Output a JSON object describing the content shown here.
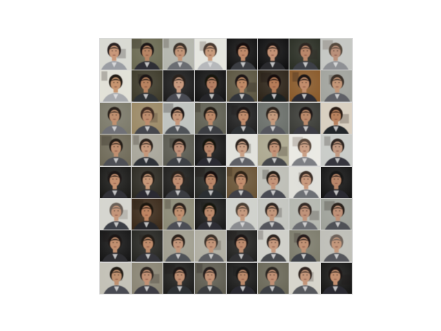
{
  "figure": {
    "rows": 8,
    "columns": 8,
    "content": "generated-face-samples",
    "tiles": [
      {
        "bg": "#d9dad3",
        "skin": "#c9987a",
        "hair": "#2a2320",
        "shirt": "#9a9da3"
      },
      {
        "bg": "#6b6a52",
        "skin": "#b88565",
        "hair": "#1c1714",
        "shirt": "#2d2f36"
      },
      {
        "bg": "#b4b6ad",
        "skin": "#c29578",
        "hair": "#3a322b",
        "shirt": "#6b6d72"
      },
      {
        "bg": "#e6e7e0",
        "skin": "#c89b7d",
        "hair": "#4a3b30",
        "shirt": "#b6b8bb"
      },
      {
        "bg": "#121212",
        "skin": "#c08a6a",
        "hair": "#15110f",
        "shirt": "#3a3c42"
      },
      {
        "bg": "#0f0f10",
        "skin": "#c49276",
        "hair": "#1a1512",
        "shirt": "#2a2b2f"
      },
      {
        "bg": "#2a2e24",
        "skin": "#b9876b",
        "hair": "#2e2722",
        "shirt": "#3d4047"
      },
      {
        "bg": "#c5c7c3",
        "skin": "#b9907a",
        "hair": "#55483e",
        "shirt": "#8e9094"
      },
      {
        "bg": "#e3e2d8",
        "skin": "#c7956f",
        "hair": "#241d19",
        "shirt": "#a8aaae"
      },
      {
        "bg": "#3d3a2a",
        "skin": "#b98360",
        "hair": "#1b1613",
        "shirt": "#2e3035"
      },
      {
        "bg": "#1c1c1c",
        "skin": "#c99b80",
        "hair": "#2b231f",
        "shirt": "#4a4c52"
      },
      {
        "bg": "#141414",
        "skin": "#b58063",
        "hair": "#171310",
        "shirt": "#27282c"
      },
      {
        "bg": "#5b5540",
        "skin": "#c08a66",
        "hair": "#1f1916",
        "shirt": "#33353b"
      },
      {
        "bg": "#2d2418",
        "skin": "#b67b58",
        "hair": "#140f0c",
        "shirt": "#1f2024"
      },
      {
        "bg": "#8a5a2a",
        "skin": "#c28d6c",
        "hair": "#1d1714",
        "shirt": "#2a2b30"
      },
      {
        "bg": "#a2a49e",
        "skin": "#c39678",
        "hair": "#3b312a",
        "shirt": "#5e6066"
      },
      {
        "bg": "#7c7a6a",
        "skin": "#c0906f",
        "hair": "#2a221d",
        "shirt": "#6f7177"
      },
      {
        "bg": "#9c8a66",
        "skin": "#be8d6e",
        "hair": "#3e2c20",
        "shirt": "#45474d"
      },
      {
        "bg": "#bfc3bf",
        "skin": "#c6987b",
        "hair": "#1e1915",
        "shirt": "#505258"
      },
      {
        "bg": "#5f5f52",
        "skin": "#bd8a6b",
        "hair": "#211b17",
        "shirt": "#3b3d43"
      },
      {
        "bg": "#202020",
        "skin": "#c08c6c",
        "hair": "#1a1512",
        "shirt": "#2f3035"
      },
      {
        "bg": "#6a6f6a",
        "skin": "#c59b7e",
        "hair": "#2a231f",
        "shirt": "#55575d"
      },
      {
        "bg": "#3a3b36",
        "skin": "#bb8a6c",
        "hair": "#1d1815",
        "shirt": "#3c3e44"
      },
      {
        "bg": "#d9cfc0",
        "skin": "#b9825f",
        "hair": "#2c1e16",
        "shirt": "#242529"
      },
      {
        "bg": "#6f6a58",
        "skin": "#bf8f70",
        "hair": "#231c18",
        "shirt": "#4d4f55"
      },
      {
        "bg": "#a8a69a",
        "skin": "#c6997c",
        "hair": "#2a221d",
        "shirt": "#2f3137"
      },
      {
        "bg": "#5a5a50",
        "skin": "#c0927a",
        "hair": "#221c18",
        "shirt": "#3d3f45"
      },
      {
        "bg": "#181818",
        "skin": "#b7866a",
        "hair": "#181311",
        "shirt": "#2b2c31"
      },
      {
        "bg": "#e2e3dc",
        "skin": "#c9a085",
        "hair": "#2b241f",
        "shirt": "#5e6066"
      },
      {
        "bg": "#ada990",
        "skin": "#c39377",
        "hair": "#332a24",
        "shirt": "#44464c"
      },
      {
        "bg": "#ecebe5",
        "skin": "#caa086",
        "hair": "#5a4a3d",
        "shirt": "#7d7f84"
      },
      {
        "bg": "#c9ccc8",
        "skin": "#c29a82",
        "hair": "#2e2621",
        "shirt": "#34363c"
      },
      {
        "bg": "#1a1a18",
        "skin": "#c49070",
        "hair": "#1c1714",
        "shirt": "#303137"
      },
      {
        "bg": "#2c2a22",
        "skin": "#c79878",
        "hair": "#201a17",
        "shirt": "#2a2b30"
      },
      {
        "bg": "#1d1d1b",
        "skin": "#bf8e72",
        "hair": "#2a221d",
        "shirt": "#3a3c42"
      },
      {
        "bg": "#272824",
        "skin": "#b98668",
        "hair": "#151110",
        "shirt": "#2c2d32"
      },
      {
        "bg": "#6a5436",
        "skin": "#c08d6d",
        "hair": "#2f2219",
        "shirt": "#3f4147"
      },
      {
        "bg": "#bebfb7",
        "skin": "#c39479",
        "hair": "#231d19",
        "shirt": "#4a4c52"
      },
      {
        "bg": "#e0e0da",
        "skin": "#c89a7e",
        "hair": "#3a2f28",
        "shirt": "#6d6f74"
      },
      {
        "bg": "#151515",
        "skin": "#b88669",
        "hair": "#191412",
        "shirt": "#2a2b30"
      },
      {
        "bg": "#d6d6cf",
        "skin": "#c49579",
        "hair": "#6a6058",
        "shirt": "#3e4046"
      },
      {
        "bg": "#3b2a1a",
        "skin": "#bd8462",
        "hair": "#1a1411",
        "shirt": "#26272b"
      },
      {
        "bg": "#8c8a76",
        "skin": "#c0906f",
        "hair": "#2a221d",
        "shirt": "#4c4e54"
      },
      {
        "bg": "#1b1b1a",
        "skin": "#bb8a6c",
        "hair": "#181411",
        "shirt": "#2e2f34"
      },
      {
        "bg": "#d0d2cc",
        "skin": "#c59a7f",
        "hair": "#4b3f36",
        "shirt": "#8a8c90"
      },
      {
        "bg": "#c4c6c0",
        "skin": "#c2977c",
        "hair": "#2d2520",
        "shirt": "#55575d"
      },
      {
        "bg": "#b5b8b0",
        "skin": "#c0937a",
        "hair": "#352c26",
        "shirt": "#6a6c71"
      },
      {
        "bg": "#9fa29a",
        "skin": "#bf9178",
        "hair": "#2b241f",
        "shirt": "#4f5157"
      },
      {
        "bg": "#161616",
        "skin": "#c29070",
        "hair": "#1b1613",
        "shirt": "#2d2e33"
      },
      {
        "bg": "#262622",
        "skin": "#bf8c6c",
        "hair": "#221c18",
        "shirt": "#34363b"
      },
      {
        "bg": "#a09e8f",
        "skin": "#c3977b",
        "hair": "#2a231e",
        "shirt": "#505258"
      },
      {
        "bg": "#b0aea2",
        "skin": "#c4967a",
        "hair": "#3a3029",
        "shirt": "#5b5d62"
      },
      {
        "bg": "#222220",
        "skin": "#bc8b6e",
        "hair": "#1c1714",
        "shirt": "#303136"
      },
      {
        "bg": "#cfd0c9",
        "skin": "#c6997e",
        "hair": "#2f2722",
        "shirt": "#46484e"
      },
      {
        "bg": "#7d7c6c",
        "skin": "#c19275",
        "hair": "#261f1b",
        "shirt": "#3e4046"
      },
      {
        "bg": "#bfbfb8",
        "skin": "#c3977c",
        "hair": "#6e645c",
        "shirt": "#55575c"
      },
      {
        "bg": "#c3c1b6",
        "skin": "#c0916f",
        "hair": "#221c18",
        "shirt": "#4a4c52"
      },
      {
        "bg": "#8a8574",
        "skin": "#c29174",
        "hair": "#2d2520",
        "shirt": "#3c3e44"
      },
      {
        "bg": "#1e1e1c",
        "skin": "#bf8f72",
        "hair": "#1b1613",
        "shirt": "#2f3035"
      },
      {
        "bg": "#5e5c50",
        "skin": "#c19276",
        "hair": "#241e1a",
        "shirt": "#3a3c41"
      },
      {
        "bg": "#1a1a19",
        "skin": "#ba896b",
        "hair": "#181412",
        "shirt": "#2a2b30"
      },
      {
        "bg": "#6a6858",
        "skin": "#c09074",
        "hair": "#2c2520",
        "shirt": "#3e4045"
      },
      {
        "bg": "#d7d5cb",
        "skin": "#c4967a",
        "hair": "#302822",
        "shirt": "#56585d"
      },
      {
        "bg": "#171716",
        "skin": "#c28f70",
        "hair": "#1d1815",
        "shirt": "#2b2c31"
      }
    ]
  }
}
